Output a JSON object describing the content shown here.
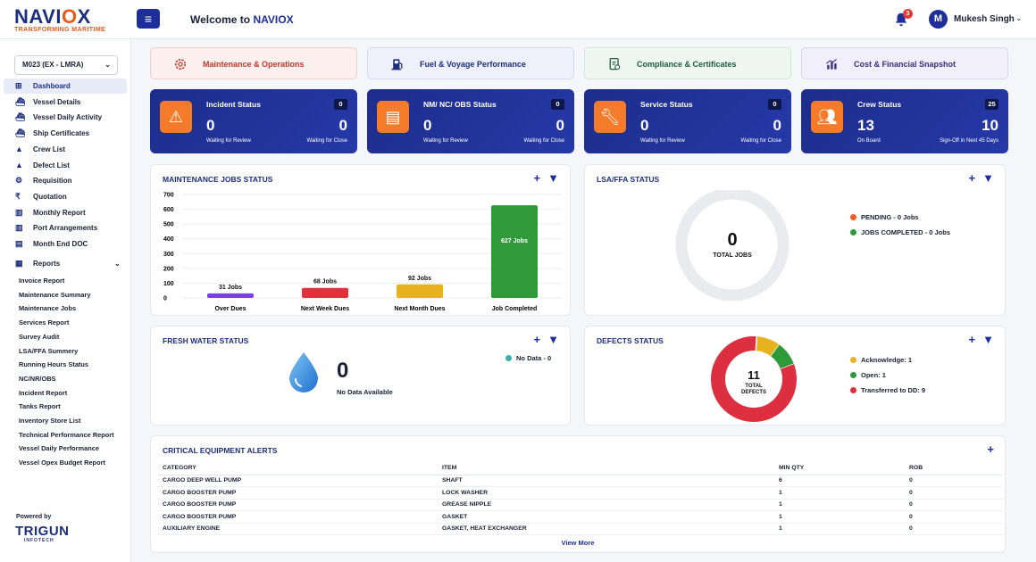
{
  "header": {
    "logo_main": "NAVI",
    "logo_x": "O",
    "logo_tail": "X",
    "logo_sub": "TRANSFORMING MARITIME",
    "welcome_prefix": "Welcome to ",
    "welcome_brand": "NAVIOX",
    "notification_count": "3",
    "avatar_initial": "M",
    "user_name": "Mukesh Singh"
  },
  "sidebar": {
    "vessel": "M023 (EX - LMRA)",
    "items": [
      {
        "label": "Dashboard",
        "icon": "dashboard-icon",
        "glyph": "⊞"
      },
      {
        "label": "Vessel Details",
        "icon": "ship-icon",
        "glyph": "⛴"
      },
      {
        "label": "Vessel Daily Activity",
        "icon": "ship-icon",
        "glyph": "⛴"
      },
      {
        "label": "Ship Certificates",
        "icon": "ship-icon",
        "glyph": "⛴"
      },
      {
        "label": "Crew List",
        "icon": "warning-icon",
        "glyph": "▲"
      },
      {
        "label": "Defect List",
        "icon": "warning-icon",
        "glyph": "▲"
      },
      {
        "label": "Requisition",
        "icon": "gear-icon",
        "glyph": "⚙"
      },
      {
        "label": "Quotation",
        "icon": "rupee-icon",
        "glyph": "₹"
      },
      {
        "label": "Monthly Report",
        "icon": "chart-icon",
        "glyph": "▥"
      },
      {
        "label": "Port Arrangements",
        "icon": "chart-icon",
        "glyph": "▥"
      },
      {
        "label": "Month End DOC",
        "icon": "document-icon",
        "glyph": "▤"
      }
    ],
    "reports_label": "Reports",
    "reports": [
      "Invoice Report",
      "Maintenance Summary",
      "Maintenance Jobs",
      "Services Report",
      "Survey Audit",
      "LSA/FFA Summery",
      "Running Hours Status",
      "NC/NR/OBS",
      "Incident Report",
      "Tanks Report",
      "Inventory Store List",
      "Technical Performance Report",
      "Vessel Daily Performance",
      "Vessel Opex Budget Report"
    ],
    "powered_by": "Powered by",
    "company": "TRIGUN",
    "company_sub": "INFOTECH"
  },
  "categories": [
    {
      "label": "Maintenance & Operations",
      "color": "#c0392b"
    },
    {
      "label": "Fuel & Voyage Performance",
      "color": "#1c2f7c"
    },
    {
      "label": "Compliance & Certificates",
      "color": "#1e5b3a"
    },
    {
      "label": "Cost & Financial Snapshot",
      "color": "#3a2f7c"
    }
  ],
  "stats": [
    {
      "title": "Incident Status",
      "badge": "0",
      "v1": "0",
      "l1": "Waiting for Review",
      "v2": "0",
      "l2": "Waiting for Close"
    },
    {
      "title": "NM/ NC/ OBS Status",
      "badge": "0",
      "v1": "0",
      "l1": "Waiting for Review",
      "v2": "0",
      "l2": "Waiting for Close"
    },
    {
      "title": "Service Status",
      "badge": "0",
      "v1": "0",
      "l1": "Waiting for Review",
      "v2": "0",
      "l2": "Waiting for Close"
    },
    {
      "title": "Crew Status",
      "badge": "25",
      "v1": "13",
      "l1": "On Board",
      "v2": "10",
      "l2": "Sign-Off in Next 45 Days"
    }
  ],
  "panels": {
    "maintenance": "MAINTENANCE JOBS STATUS",
    "lsa": "LSA/FFA STATUS",
    "fresh_water": "FRESH WATER STATUS",
    "defects": "DEFECTS STATUS",
    "critical": "CRITICAL EQUIPMENT ALERTS"
  },
  "chart_data": [
    {
      "type": "bar",
      "categories": [
        "Over Dues",
        "Next Week Dues",
        "Next Month Dues",
        "Job Completed"
      ],
      "values": [
        31,
        68,
        92,
        627
      ],
      "data_labels": [
        "31 Jobs",
        "68 Jobs",
        "92 Jobs",
        "627 Jobs"
      ],
      "colors": [
        "#7b3fe4",
        "#e0323c",
        "#e8b21e",
        "#2e9a3a"
      ],
      "ylim": [
        0,
        700
      ],
      "yticks": [
        "0",
        "100",
        "200",
        "300",
        "400",
        "500",
        "600",
        "700"
      ],
      "grid": true
    },
    {
      "type": "pie",
      "center_value": "0",
      "center_label": "TOTAL JOBS",
      "categories": [
        "PENDING - 0 Jobs",
        "JOBS COMPLETED - 0 Jobs"
      ],
      "values": [
        0,
        0
      ],
      "colors": [
        "#f05a28",
        "#2e9a3a"
      ],
      "legend": "right"
    },
    {
      "type": "pie",
      "center_value": "0",
      "center_label": "No Data Available",
      "categories": [
        "No Data - 0"
      ],
      "values": [
        0
      ],
      "colors": [
        "#36b0b0"
      ],
      "legend": "top-right"
    },
    {
      "type": "pie",
      "center_value": "11",
      "center_label_1": "TOTAL",
      "center_label_2": "DEFECTS",
      "categories": [
        "Acknowledge: 1",
        "Open: 1",
        "Transferred to DD: 9"
      ],
      "values": [
        1,
        1,
        9
      ],
      "colors": [
        "#e8b21e",
        "#2e9a3a",
        "#dc2f3f"
      ],
      "legend": "right"
    }
  ],
  "critical_table": {
    "headers": [
      "CATEGORY",
      "ITEM",
      "MIN QTY",
      "ROB"
    ],
    "rows": [
      [
        "CARGO DEEP WELL PUMP",
        "SHAFT",
        "6",
        "0"
      ],
      [
        "CARGO BOOSTER PUMP",
        "LOCK WASHER",
        "1",
        "0"
      ],
      [
        "CARGO BOOSTER PUMP",
        "GREASE NIPPLE",
        "1",
        "0"
      ],
      [
        "CARGO BOOSTER PUMP",
        "GASKET",
        "1",
        "0"
      ],
      [
        "AUXILIARY ENGINE",
        "GASKET, HEAT EXCHANGER",
        "1",
        "0"
      ]
    ],
    "view_more": "View More"
  }
}
